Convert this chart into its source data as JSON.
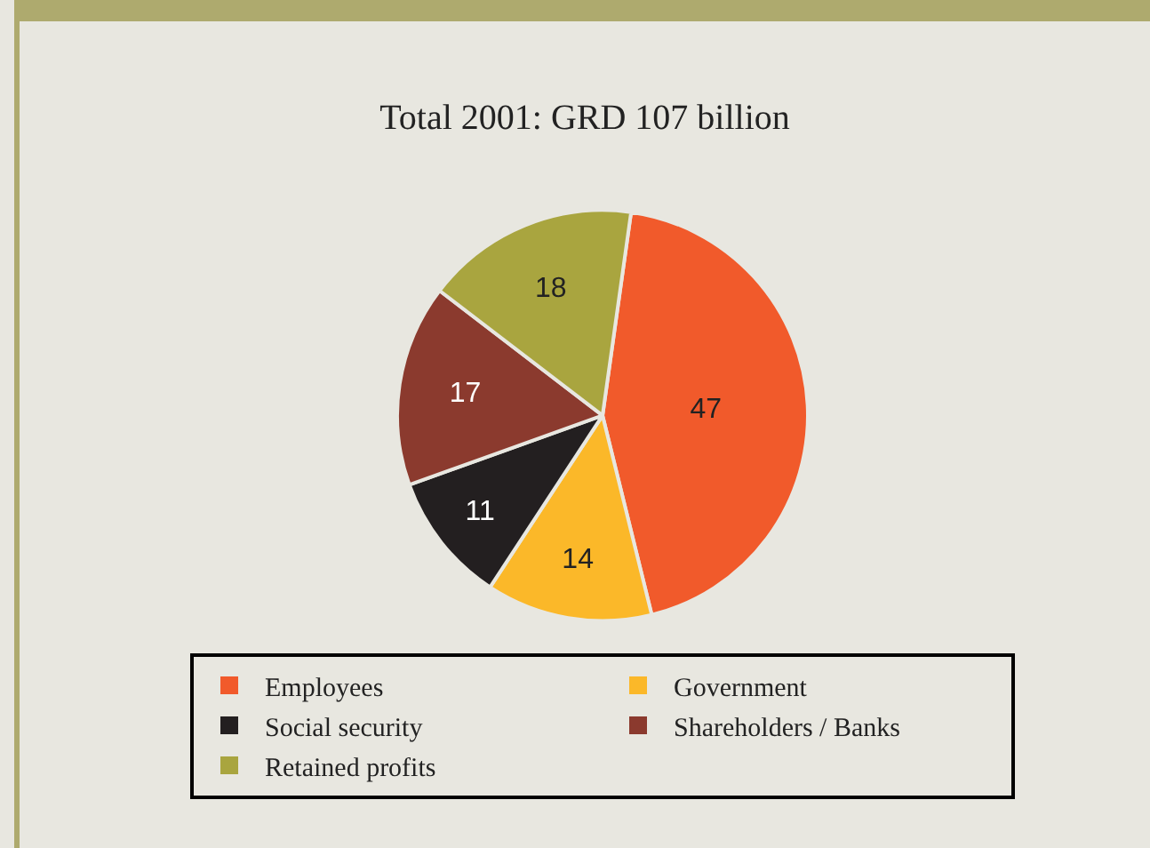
{
  "chart_data": {
    "type": "pie",
    "title": "Total 2001: GRD 107 billion",
    "categories": [
      "Employees",
      "Government",
      "Social security",
      "Shareholders / Banks",
      "Retained profits"
    ],
    "values": [
      47,
      14,
      11,
      17,
      18
    ],
    "colors": [
      "#f15a2b",
      "#fbb829",
      "#231f20",
      "#8b3a2e",
      "#a9a53f"
    ],
    "data_labels": true,
    "legend": "bottom"
  }
}
